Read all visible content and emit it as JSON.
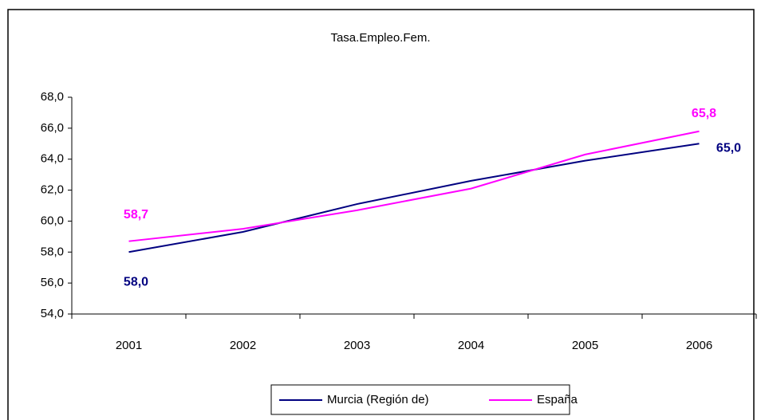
{
  "chart_data": {
    "type": "line",
    "title": "Tasa.Empleo.Fem.",
    "categories": [
      "2001",
      "2002",
      "2003",
      "2004",
      "2005",
      "2006"
    ],
    "series": [
      {
        "name": "Murcia (Región de)",
        "color": "#000080",
        "values": [
          58.0,
          59.3,
          61.1,
          62.6,
          63.9,
          65.0
        ],
        "value_labels": [
          "58,0",
          null,
          null,
          null,
          null,
          "65,0"
        ]
      },
      {
        "name": "España",
        "color": "#ff00ff",
        "values": [
          58.7,
          59.5,
          60.7,
          62.1,
          64.3,
          65.8
        ],
        "value_labels": [
          "58,7",
          null,
          null,
          null,
          null,
          "65,8"
        ]
      }
    ],
    "ylim": [
      54,
      68
    ],
    "yticks": [
      {
        "value": 54,
        "label": "54,0"
      },
      {
        "value": 56,
        "label": "56,0"
      },
      {
        "value": 58,
        "label": "58,0"
      },
      {
        "value": 60,
        "label": "60,0"
      },
      {
        "value": 62,
        "label": "62,0"
      },
      {
        "value": 64,
        "label": "64,0"
      },
      {
        "value": 66,
        "label": "66,0"
      },
      {
        "value": 68,
        "label": "68,0"
      }
    ],
    "grid": false,
    "legend": "bottom"
  }
}
